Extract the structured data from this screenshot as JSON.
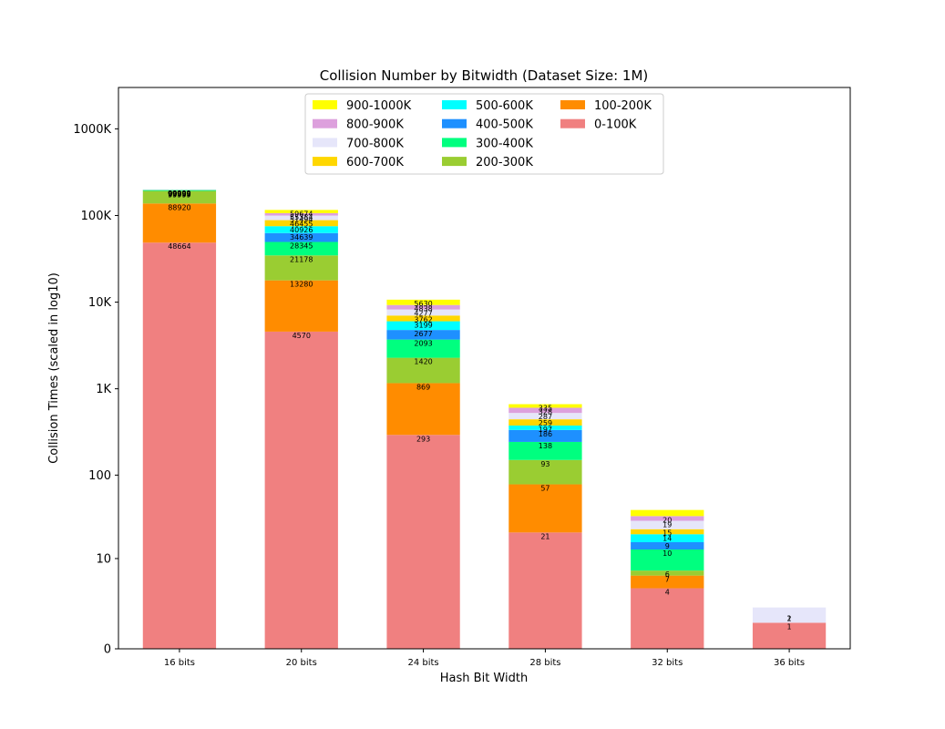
{
  "chart_data": {
    "type": "bar",
    "stacked": true,
    "title": "Collision Number by Bitwidth (Dataset Size: 1M)",
    "xlabel": "Hash Bit Width",
    "ylabel": "Collision Times (scaled in log10)",
    "yscale": "log10(value+1)",
    "ylim": [
      0,
      3000000
    ],
    "ytick_values": [
      0,
      10,
      100,
      1000,
      10000,
      100000,
      1000000
    ],
    "ytick_labels": [
      "0",
      "10",
      "100",
      "1K",
      "10K",
      "100K",
      "1000K"
    ],
    "categories": [
      "16 bits",
      "20 bits",
      "24 bits",
      "28 bits",
      "32 bits",
      "36 bits"
    ],
    "legend": {
      "placement": "top-center",
      "columns": 3,
      "order": [
        "900-1000K",
        "800-900K",
        "700-800K",
        "600-700K",
        "500-600K",
        "400-500K",
        "300-400K",
        "200-300K",
        "100-200K",
        "0-100K"
      ]
    },
    "series": [
      {
        "name": "0-100K",
        "color": "#f08080",
        "cumulative": [
          48664,
          4570,
          293,
          21,
          4,
          1
        ]
      },
      {
        "name": "100-200K",
        "color": "#ff8c00",
        "cumulative": [
          137584,
          17850,
          1162,
          78,
          6,
          1
        ]
      },
      {
        "name": "200-300K",
        "color": "#9acd32",
        "cumulative": [
          192000,
          34619,
          2282,
          150,
          7,
          1
        ]
      },
      {
        "name": "300-400K",
        "color": "#00ff7f",
        "cumulative": [
          196000,
          49523,
          3702,
          243,
          13,
          1
        ]
      },
      {
        "name": "400-500K",
        "color": "#1e90ff",
        "cumulative": [
          196800,
          62690,
          4775,
          334,
          16,
          1
        ]
      },
      {
        "name": "500-600K",
        "color": "#00ffff",
        "cumulative": [
          197400,
          75269,
          6017,
          376,
          20,
          1
        ]
      },
      {
        "name": "600-700K",
        "color": "#ffd700",
        "cumulative": [
          197900,
          88400,
          7009,
          444,
          23,
          1
        ]
      },
      {
        "name": "700-800K",
        "color": "#e6e6fa",
        "cumulative": [
          198300,
          99800,
          8232,
          526,
          29,
          2
        ]
      },
      {
        "name": "800-900K",
        "color": "#dda0dd",
        "cumulative": [
          198600,
          106500,
          9271,
          604,
          33,
          2
        ]
      },
      {
        "name": "900-1000K",
        "color": "#ffff00",
        "cumulative": [
          198950,
          115900,
          10680,
          664,
          39,
          2
        ]
      }
    ],
    "data_labels": [
      [
        "48664",
        "88920",
        "99999",
        "99999",
        "99999",
        "99999",
        "99999",
        "99999",
        "99999",
        "99999"
      ],
      [
        "4570",
        "13280",
        "21178",
        "28345",
        "34639",
        "40926",
        "46455",
        "51494",
        "55384",
        "59674"
      ],
      [
        "293",
        "869",
        "1420",
        "2093",
        "2677",
        "3199",
        "3762",
        "4277",
        "4838",
        "5630"
      ],
      [
        "21",
        "57",
        "93",
        "138",
        "186",
        "197",
        "259",
        "287",
        "328",
        "335"
      ],
      [
        "4",
        "7",
        "6",
        "10",
        "9",
        "14",
        "15",
        "19",
        "20"
      ],
      [
        "1",
        "2",
        "1"
      ]
    ],
    "grid": false
  }
}
